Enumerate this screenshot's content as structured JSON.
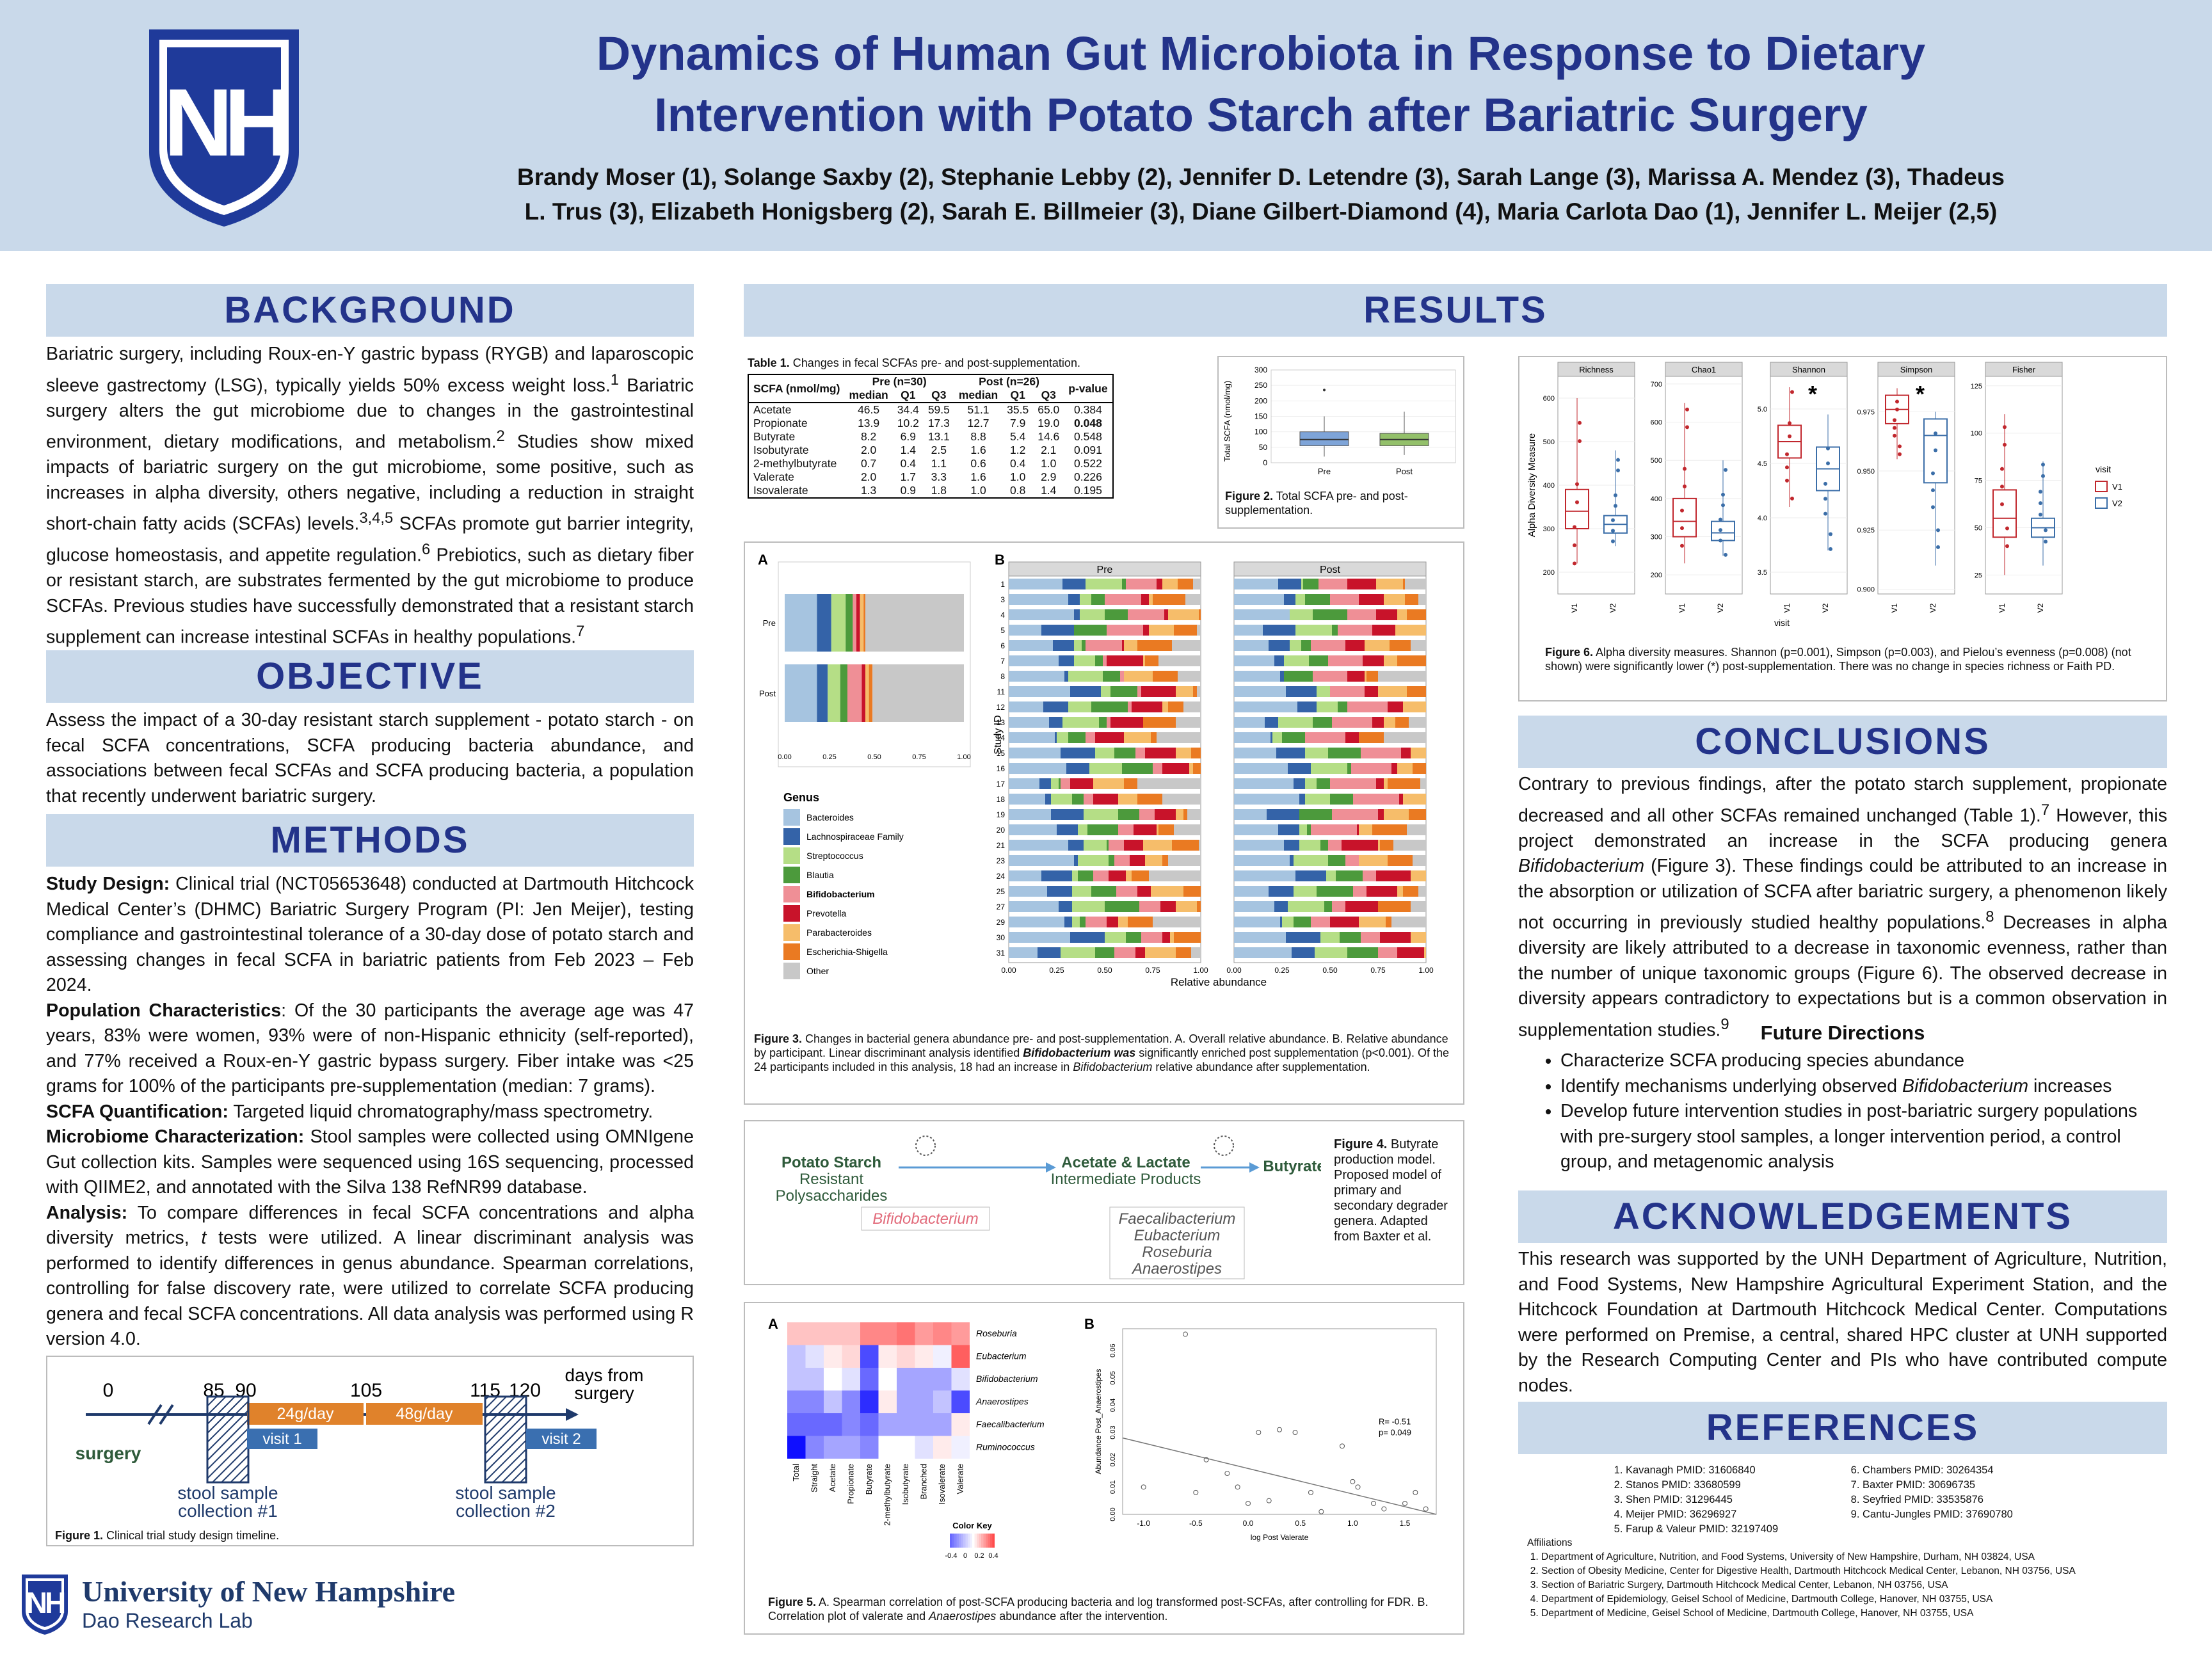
{
  "header": {
    "title_line1": "Dynamics of Human Gut Microbiota in Response to Dietary",
    "title_line2": "Intervention with Potato Starch after Bariatric Surgery",
    "authors_line1": "Brandy Moser (1), Solange Saxby (2), Stephanie Lebby (2), Jennifer D. Letendre (3), Sarah Lange (3), Marissa A. Mendez (3), Thadeus",
    "authors_line2": "L. Trus (3), Elizabeth Honigsberg (2), Sarah E. Billmeier (3), Diane Gilbert-Diamond (4), Maria Carlota Dao (1), Jennifer L. Meijer  (2,5)",
    "logo_text": "NH"
  },
  "sections": {
    "background": "BACKGROUND",
    "objective": "OBJECTIVE",
    "methods": "METHODS",
    "results": "RESULTS",
    "conclusions": "CONCLUSIONS",
    "acknowledgements": "ACKNOWLEDGEMENTS",
    "references": "REFERENCES"
  },
  "background": {
    "p1": "Bariatric surgery, including Roux-en-Y gastric bypass (RYGB) and laparoscopic sleeve gastrectomy (LSG), typically yields 50% excess weight loss.",
    "p1_sup1": "1",
    "p1b": " Bariatric surgery alters the gut microbiome due to changes in the gastrointestinal environment, dietary modifications, and metabolism.",
    "p1_sup2": "2",
    "p1c": " Studies show mixed impacts of bariatric surgery on the gut microbiome, some positive, such as increases in alpha diversity, others negative, including a reduction in straight short-chain fatty acids (SCFAs) levels.",
    "p1_sup3": "3,4,5",
    "p1d": " SCFAs promote gut barrier integrity, glucose homeostasis, and appetite regulation.",
    "p1_sup4": "6",
    "p1e": " Prebiotics, such as dietary fiber or resistant starch, are substrates fermented by the gut microbiome to produce SCFAs. Previous studies have successfully demonstrated that a resistant starch supplement can increase intestinal SCFAs in healthy populations.",
    "p1_sup5": "7"
  },
  "objective": {
    "text": "Assess the impact of a 30-day resistant starch supplement - potato starch - on fecal SCFA concentrations, SCFA producing bacteria abundance, and associations between fecal SCFAs and SCFA producing bacteria, a population that recently underwent bariatric surgery."
  },
  "methods": {
    "design_label": "Study Design:",
    "design_text": " Clinical trial (NCT05653648) conducted at Dartmouth Hitchcock Medical Center’s (DHMC) Bariatric Surgery Program (PI: Jen Meijer), testing compliance and gastrointestinal tolerance of a 30-day dose of potato starch and assessing changes in fecal SCFA in bariatric patients from Feb 2023 – Feb 2024.",
    "pop_label": "Population Characteristics",
    "pop_text": ": Of the 30 participants the average age was 47 years, 83% were women, 93% were of non-Hispanic ethnicity (self-reported), and 77% received a Roux-en-Y gastric bypass surgery. Fiber intake was <25 grams for 100% of the participants pre-supplementation (median: 7 grams).",
    "scfa_label": "SCFA Quantification:",
    "scfa_text": " Targeted liquid chromatography/mass spectrometry.",
    "micro_label": "Microbiome Characterization:",
    "micro_text": " Stool samples were collected using OMNIgene Gut collection kits. Samples were sequenced using 16S sequencing, processed with QIIME2, and annotated with the Silva 138 RefNR99 database.",
    "analysis_label": "Analysis:",
    "analysis_text_a": " To compare differences in fecal SCFA concentrations and alpha diversity metrics, ",
    "analysis_t": "t",
    "analysis_text_b": " tests were utilized. A linear discriminant analysis was performed to identify differences in genus abundance. Spearman correlations, controlling for false discovery rate, were utilized to correlate SCFA producing genera and fecal SCFA concentrations. All data analysis was performed using R version 4.0."
  },
  "figure1": {
    "ticks": [
      "0",
      "85",
      "90",
      "105",
      "115",
      "120"
    ],
    "days_label_1": "days from",
    "days_label_2": "surgery",
    "surgery": "surgery",
    "dose1": "24g/day",
    "dose2": "48g/day",
    "visit1": "visit 1",
    "visit2": "visit 2",
    "stool1_a": "stool sample",
    "stool1_b": "collection #1",
    "stool2_a": "stool sample",
    "stool2_b": "collection #2",
    "caption_label": "Figure 1.",
    "caption": " Clinical trial study design timeline.",
    "colors": {
      "dose": "#e0822b",
      "visit": "#3a6fb0",
      "line": "#1f3a6b",
      "surgery": "#2e5a3a"
    }
  },
  "table1": {
    "caption_label": "Table 1.",
    "caption": " Changes in fecal SCFAs pre- and post-supplementation.",
    "col_scfa": "SCFA (nmol/mg)",
    "group_pre": "Pre (n=30)",
    "group_post": "Post (n=26)",
    "sub": [
      "median",
      "Q1",
      "Q3",
      "median",
      "Q1",
      "Q3"
    ],
    "col_p": "p-value",
    "rows": [
      {
        "name": "Acetate",
        "v": [
          "46.5",
          "34.4",
          "59.5",
          "51.1",
          "35.5",
          "65.0"
        ],
        "p": "0.384"
      },
      {
        "name": "Propionate",
        "v": [
          "13.9",
          "10.2",
          "17.3",
          "12.7",
          "7.9",
          "19.0"
        ],
        "p": "0.048"
      },
      {
        "name": "Butyrate",
        "v": [
          "8.2",
          "6.9",
          "13.1",
          "8.8",
          "5.4",
          "14.6"
        ],
        "p": "0.548"
      },
      {
        "name": "Isobutyrate",
        "v": [
          "2.0",
          "1.4",
          "2.5",
          "1.6",
          "1.2",
          "2.1"
        ],
        "p": "0.091"
      },
      {
        "name": "2-methylbutyrate",
        "v": [
          "0.7",
          "0.4",
          "1.1",
          "0.6",
          "0.4",
          "1.0"
        ],
        "p": "0.522"
      },
      {
        "name": "Valerate",
        "v": [
          "2.0",
          "1.7",
          "3.3",
          "1.6",
          "1.0",
          "2.9"
        ],
        "p": "0.226"
      },
      {
        "name": "Isovalerate",
        "v": [
          "1.3",
          "0.9",
          "1.8",
          "1.0",
          "0.8",
          "1.4"
        ],
        "p": "0.195"
      }
    ]
  },
  "figure2": {
    "ylabel": "Total SCFA (nmol/mg)",
    "yticks": [
      "300",
      "250",
      "200",
      "150",
      "100",
      "50",
      "0"
    ],
    "categories": [
      "Pre",
      "Post"
    ],
    "caption_label": "Figure 2.",
    "caption": " Total SCFA pre- and post-supplementation.",
    "colors": {
      "pre": "#7ea4d8",
      "post": "#93c06a"
    }
  },
  "figure3": {
    "label_a": "A",
    "label_b": "B",
    "rows_a": [
      "Pre",
      "Post"
    ],
    "xticks": [
      "0.00",
      "0.25",
      "0.50",
      "0.75",
      "1.00"
    ],
    "facet_pre": "Pre",
    "facet_post": "Post",
    "ylabel": "Study ID",
    "xlabel": "Relative abundance",
    "ids": [
      "1",
      "3",
      "4",
      "5",
      "6",
      "7",
      "8",
      "11",
      "12",
      "13",
      "14",
      "15",
      "16",
      "17",
      "18",
      "19",
      "20",
      "21",
      "23",
      "24",
      "25",
      "27",
      "29",
      "30",
      "31"
    ],
    "legend_title": "Genus",
    "legend": [
      {
        "name": "Bacteroides",
        "color": "#a6c4e0"
      },
      {
        "name": "Lachnospiraceae Family",
        "color": "#3463a8"
      },
      {
        "name": "Streptococcus",
        "color": "#b5de86"
      },
      {
        "name": "Blautia",
        "color": "#4c9a3c"
      },
      {
        "name": "Bifidobacterium",
        "color": "#ef8f96"
      },
      {
        "name": "Prevotella",
        "color": "#c8132a"
      },
      {
        "name": "Parabacteroides",
        "color": "#f6bd6a"
      },
      {
        "name": "Escherichia-Shigella",
        "color": "#ea7a22"
      },
      {
        "name": "Other",
        "color": "#c8c8c8"
      }
    ],
    "caption_label": "Figure 3.",
    "caption_a": " Changes in bacterial genera abundance pre- and post-supplementation. A. Overall relative abundance. B. Relative abundance by participant. Linear discriminant analysis identified ",
    "caption_bifido": "Bifidobacterium",
    "caption_was": " was",
    "caption_b": " significantly enriched post supplementation (p<0.001). Of the 24 participants included in this analysis, 18 had an increase in ",
    "caption_bifido2": "Bifidobacterium",
    "caption_c": " relative abundance after supplementation."
  },
  "figure4": {
    "potato": "Potato Starch",
    "resistant": "Resistant",
    "poly": "Polysaccharides",
    "acetate": "Acetate & Lactate",
    "intermediate": "Intermediate Products",
    "butyrate": "Butyrate",
    "bifido": "Bifidobacterium",
    "faecali": "Faecalibacterium",
    "eubacterium": "Eubacterium",
    "roseburia": "Roseburia",
    "anaerostipes": "Anaerostipes",
    "caption_label": "Figure 4.",
    "caption": " Butyrate production model. Proposed model of primary and secondary degrader genera. Adapted from Baxter et al."
  },
  "figure5": {
    "label_a": "A",
    "label_b": "B",
    "genera": [
      "Roseburia",
      "Eubacterium",
      "Bifidobacterium",
      "Anaerostipes",
      "Faecalibacterium",
      "Ruminococcus"
    ],
    "scfas": [
      "Total",
      "Straight",
      "Acetate",
      "Propionate",
      "Butyrate",
      "2-methylbutyrate",
      "Isobutyrate",
      "Branched",
      "Isovalerate",
      "Valerate"
    ],
    "color_key": "Color Key",
    "key_ticks": [
      "-0.4",
      "0",
      "0.2",
      "0.4"
    ],
    "scatter_xlabel": "log Post Valerate",
    "scatter_ylabel": "Abundance Post_Anaerostipes",
    "scatter_xticks": [
      "-1.0",
      "-0.5",
      "0.0",
      "0.5",
      "1.0",
      "1.5"
    ],
    "scatter_yticks": [
      "0.00",
      "0.01",
      "0.02",
      "0.03",
      "0.04",
      "0.05",
      "0.06"
    ],
    "r_text": "R= -0.51",
    "p_text": "p= 0.049",
    "caption_label": "Figure 5.",
    "caption_a": " A. Spearman correlation of post-SCFA producing bacteria and log transformed post-SCFAs, after controlling for FDR. B. Correlation plot of valerate and ",
    "caption_an": "Anaerostipes",
    "caption_b": " abundance after the intervention."
  },
  "figure6": {
    "facets": [
      "Richness",
      "Chao1",
      "Shannon",
      "Simpson",
      "Fisher"
    ],
    "ylabel": "Alpha Diversity Measure",
    "xlabel": "visit",
    "visits": [
      "V1",
      "V2"
    ],
    "legend_title": "visit",
    "legend": [
      "V1",
      "V2"
    ],
    "colors": {
      "v1": "#c1272d",
      "v2": "#3b6ea8"
    },
    "star": "*",
    "yticks": {
      "Richness": [
        "600",
        "500",
        "400",
        "300",
        "200"
      ],
      "Chao1": [
        "700",
        "600",
        "500",
        "400",
        "300",
        "200"
      ],
      "Shannon": [
        "5.0",
        "4.5",
        "4.0",
        "3.5"
      ],
      "Simpson": [
        "0.975",
        "0.950",
        "0.925",
        "0.900"
      ],
      "Fisher": [
        "125",
        "100",
        "75",
        "50",
        "25"
      ]
    },
    "caption_label": "Figure 6.",
    "caption": " Alpha diversity measures. Shannon (p=0.001), Simpson (p=0.003), and Pielou’s evenness (p=0.008) (not shown) were significantly lower (*) post-supplementation. There was no change in species richness or Faith PD."
  },
  "conclusions": {
    "text_a": "Contrary to previous findings, after the potato starch supplement, propionate decreased and all other SCFAs remained unchanged (Table 1).",
    "sup_a": "7",
    "text_b": " However, this project demonstrated an increase in the SCFA producing genera ",
    "bifido": "Bifidobacterium",
    "text_c": " (Figure 3). These findings could be attributed to an increase in the absorption or utilization of SCFA after bariatric surgery, a phenomenon likely not occurring in previously studied healthy populations.",
    "sup_b": "8",
    "text_d": " Decreases in alpha diversity are likely attributed to a decrease in taxonomic evenness, rather than the number of unique taxonomic groups (Figure 6). The observed decrease in diversity appears contradictory to expectations but is a common observation in supplementation studies.",
    "sup_c": "9",
    "future_title": "Future Directions",
    "future_1": "Characterize SCFA producing species abundance",
    "future_2a": "Identify mechanisms underlying observed ",
    "future_2b": "Bifidobacterium",
    "future_2c": " increases",
    "future_3": "Develop future intervention studies in post-bariatric surgery populations with pre-surgery stool samples, a longer intervention period, a control group, and metagenomic analysis"
  },
  "acknowledgements": {
    "text": "This research was supported by the UNH Department of Agriculture, Nutrition, and Food Systems, New Hampshire Agricultural Experiment Station, and the Hitchcock Foundation at Dartmouth Hitchcock Medical Center.  Computations were performed on Premise, a central, shared HPC cluster at UNH supported by the Research Computing Center and PIs who have contributed compute nodes."
  },
  "references": {
    "left": [
      "Kavanagh PMID: 31606840",
      "Stanos PMID: 33680599",
      "Shen PMID: 31296445",
      "Meijer PMID: 36296927",
      "Farup & Valeur PMID: 32197409"
    ],
    "right": [
      "Chambers PMID: 30264354",
      "Baxter PMID: 30696735",
      "Seyfried PMID: 33535876",
      "Cantu-Jungles PMID: 37690780"
    ],
    "affil_title": "Affiliations",
    "affils": [
      "Department of Agriculture, Nutrition, and Food Systems, University of New Hampshire, Durham, NH 03824, USA",
      "Section of Obesity Medicine, Center for Digestive Health, Dartmouth Hitchcock Medical Center, Lebanon, NH 03756, USA",
      "Section of Bariatric Surgery, Dartmouth Hitchcock Medical Center, Lebanon, NH 03756, USA",
      "Department of Epidemiology, Geisel School of Medicine, Dartmouth College, Hanover, NH 03755, USA",
      "Department of Medicine, Geisel School of Medicine, Dartmouth College, Hanover, NH 03755, USA"
    ]
  },
  "footer": {
    "university": "University of New Hampshire",
    "lab": "Dao Research Lab",
    "logo_text": "NH"
  }
}
